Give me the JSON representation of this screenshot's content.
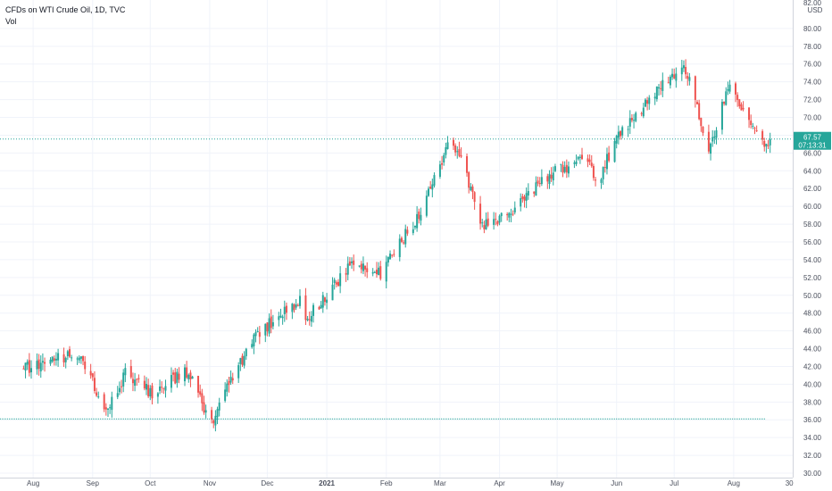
{
  "header": {
    "symbol_title": "CFDs on WTI Crude Oil, 1D, TVC",
    "indicator": "Vol"
  },
  "price_axis": {
    "currency": "USD",
    "top_partial_label": "82.00"
  },
  "price_label": {
    "value": "67.57",
    "countdown": "07:13:31"
  },
  "colors": {
    "up": "#26a69a",
    "down": "#ef5350",
    "last_price_line": "#26a69a",
    "support_line": "#26a69a",
    "grid": "#f0f3fa"
  },
  "chart_data": {
    "type": "candlestick",
    "title": "CFDs on WTI Crude Oil, 1D, TVC",
    "ylim": [
      29.5,
      83
    ],
    "y_ticks": [
      "30.00",
      "32.00",
      "34.00",
      "36.00",
      "38.00",
      "40.00",
      "42.00",
      "44.00",
      "46.00",
      "48.00",
      "50.00",
      "52.00",
      "54.00",
      "56.00",
      "58.00",
      "60.00",
      "62.00",
      "64.00",
      "66.00",
      "68.00",
      "70.00",
      "72.00",
      "74.00",
      "76.00",
      "78.00",
      "80.00"
    ],
    "x_tick_labels": [
      "Aug",
      "Sep",
      "Oct",
      "Nov",
      "Dec",
      "2021",
      "Feb",
      "Mar",
      "Apr",
      "May",
      "Jun",
      "Jul",
      "Aug",
      "30"
    ],
    "last_price": 67.57,
    "horizontal_line": 36.1,
    "anchors": [
      {
        "date": "2020-07-27",
        "close": 41.8
      },
      {
        "date": "2020-08-06",
        "close": 42.4
      },
      {
        "date": "2020-08-26",
        "close": 43.4
      },
      {
        "date": "2020-09-08",
        "close": 36.8
      },
      {
        "date": "2020-09-18",
        "close": 41.2
      },
      {
        "date": "2020-10-02",
        "close": 39.0
      },
      {
        "date": "2020-10-12",
        "close": 40.6
      },
      {
        "date": "2020-10-21",
        "close": 41.4
      },
      {
        "date": "2020-11-02",
        "close": 35.5
      },
      {
        "date": "2020-11-13",
        "close": 40.9
      },
      {
        "date": "2020-11-25",
        "close": 45.6
      },
      {
        "date": "2020-12-18",
        "close": 49.4
      },
      {
        "date": "2020-12-21",
        "close": 47.2
      },
      {
        "date": "2021-01-13",
        "close": 53.3
      },
      {
        "date": "2021-01-29",
        "close": 52.5
      },
      {
        "date": "2021-02-19",
        "close": 59.4
      },
      {
        "date": "2021-03-05",
        "close": 66.5
      },
      {
        "date": "2021-03-12",
        "close": 65.6
      },
      {
        "date": "2021-03-23",
        "close": 57.8
      },
      {
        "date": "2021-04-06",
        "close": 59.3
      },
      {
        "date": "2021-04-28",
        "close": 63.8
      },
      {
        "date": "2021-05-18",
        "close": 65.5
      },
      {
        "date": "2021-05-21",
        "close": 62.2
      },
      {
        "date": "2021-06-01",
        "close": 67.8
      },
      {
        "date": "2021-06-24",
        "close": 73.3
      },
      {
        "date": "2021-07-06",
        "close": 76.3
      },
      {
        "date": "2021-07-19",
        "close": 66.3
      },
      {
        "date": "2021-07-30",
        "close": 73.9
      },
      {
        "date": "2021-08-11",
        "close": 68.6
      },
      {
        "date": "2021-08-17",
        "close": 66.5
      },
      {
        "date": "2021-08-20",
        "close": 67.57
      }
    ]
  }
}
